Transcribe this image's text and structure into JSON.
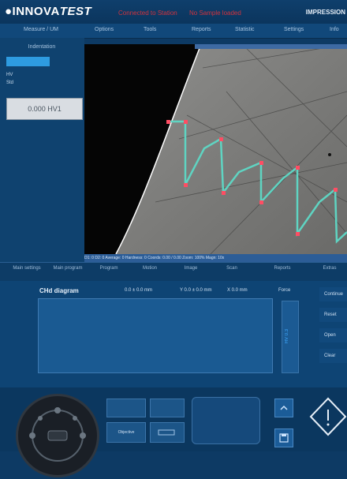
{
  "header": {
    "logo_main": "●INNOVA",
    "logo_italic": "TEST",
    "status_red_1": "Connected to Station",
    "status_red_2": "No Sample loaded",
    "right_title": "IMPRESSION"
  },
  "top_menu": [
    "Measure / UM",
    "Options",
    "Tools",
    "Reports",
    "Statistic",
    "Settings",
    "Info"
  ],
  "left_panel": {
    "tab_label": "Indentation",
    "line1": "HV",
    "line2": "Std",
    "value_box": "0.000 HV1"
  },
  "image_view": {
    "status_bar": "D1: 0  D2: 0   Average: 0   Hardness: 0   Coords: 0.00 / 0.00   Zoom: 100%   Magn: 10x"
  },
  "lower_tabs": [
    "Main settings",
    "Main program",
    "Program",
    "Motion",
    "Image",
    "Scan",
    "Reports",
    "Extras"
  ],
  "diagram": {
    "title": "CHd diagram",
    "header1": "0.0 ± 0.0 mm",
    "header2": "Y 0.0 ± 0.0 mm",
    "header3": "X 0.0 mm",
    "force_label": "Force",
    "vbar_label": "HV 0.3",
    "right_buttons": [
      "Continue",
      "Reset",
      "Open",
      "Clear"
    ]
  },
  "controls": {
    "button_c_label": "Objective"
  },
  "colors": {
    "background": "#0d3a64",
    "accent_red": "#d1333e",
    "trace_teal": "#5fd4c2",
    "marker_red": "#ff4d63",
    "boundary_white": "#ffffff"
  }
}
